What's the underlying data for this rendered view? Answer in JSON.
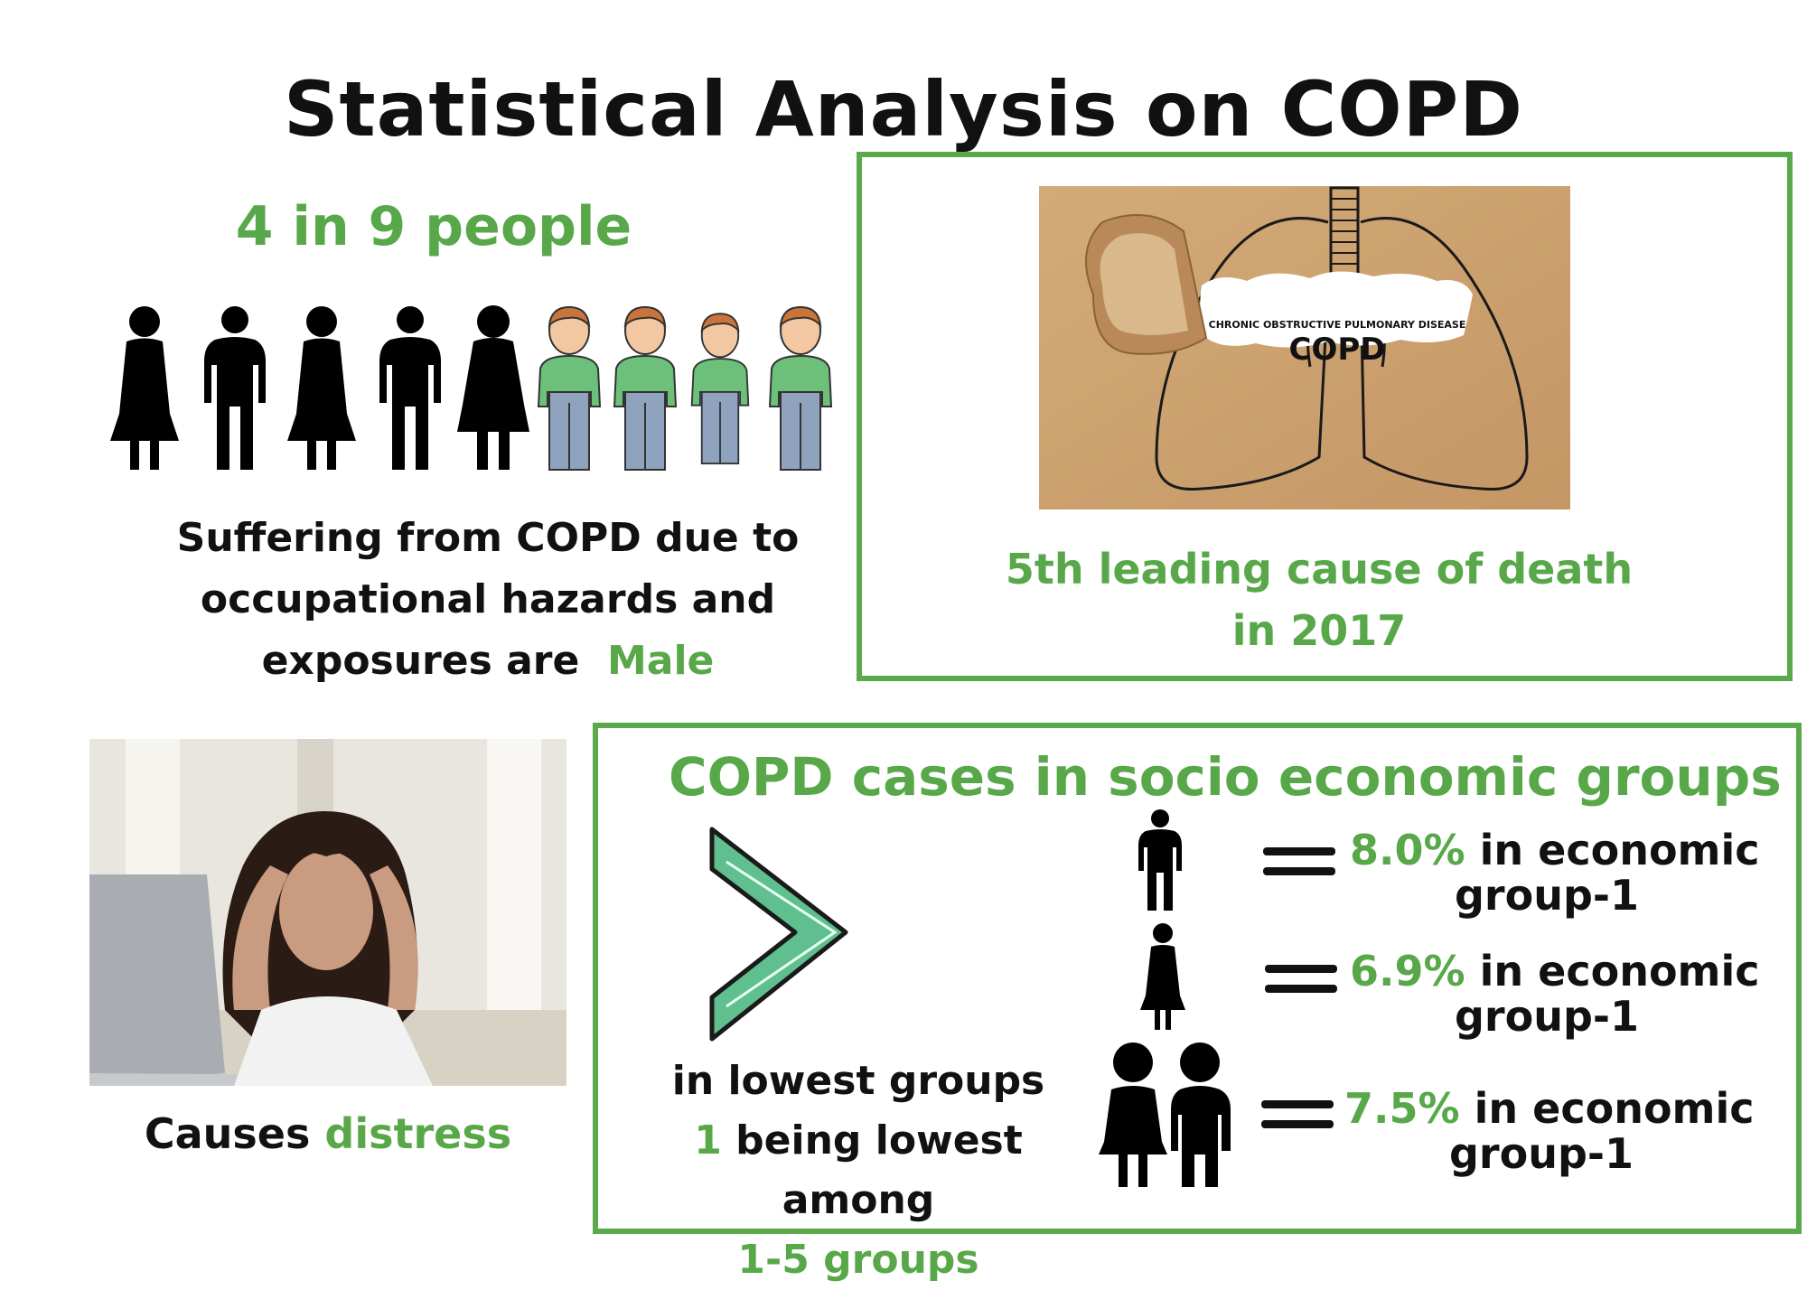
{
  "title": "Statistical Analysis on COPD",
  "occupational": {
    "headline": "4 in 9 people",
    "caption_line1": "Suffering from COPD due to",
    "caption_line2": "occupational hazards and",
    "caption_line3": "exposures are",
    "highlight": "Male",
    "total_people": 9,
    "highlighted_people": 4
  },
  "death": {
    "image_small_text": "CHRONIC OBSTRUCTIVE PULMONARY DISEASE",
    "image_big_text": "COPD",
    "line1": "5th leading cause of death",
    "line2": "in 2017"
  },
  "distress": {
    "prefix": "Causes",
    "highlight": "distress"
  },
  "socio": {
    "title": "COPD cases in socio economic groups",
    "lowest_line1": "in lowest groups",
    "lowest_num": "1",
    "lowest_line2_rest": " being lowest among",
    "lowest_line3": "1-5 groups",
    "groups": [
      {
        "pct": "8.0%",
        "text1": " in economic",
        "text2": "group-1"
      },
      {
        "pct": "6.9%",
        "text1": " in economic",
        "text2": "group-1"
      },
      {
        "pct": "7.5%",
        "text1": " in economic",
        "text2": "group-1"
      }
    ]
  },
  "colors": {
    "accent": "#58a84a",
    "frame": "#5aaa4c",
    "chevron": "#5fbf8f",
    "kraft": "#c9a06b"
  }
}
